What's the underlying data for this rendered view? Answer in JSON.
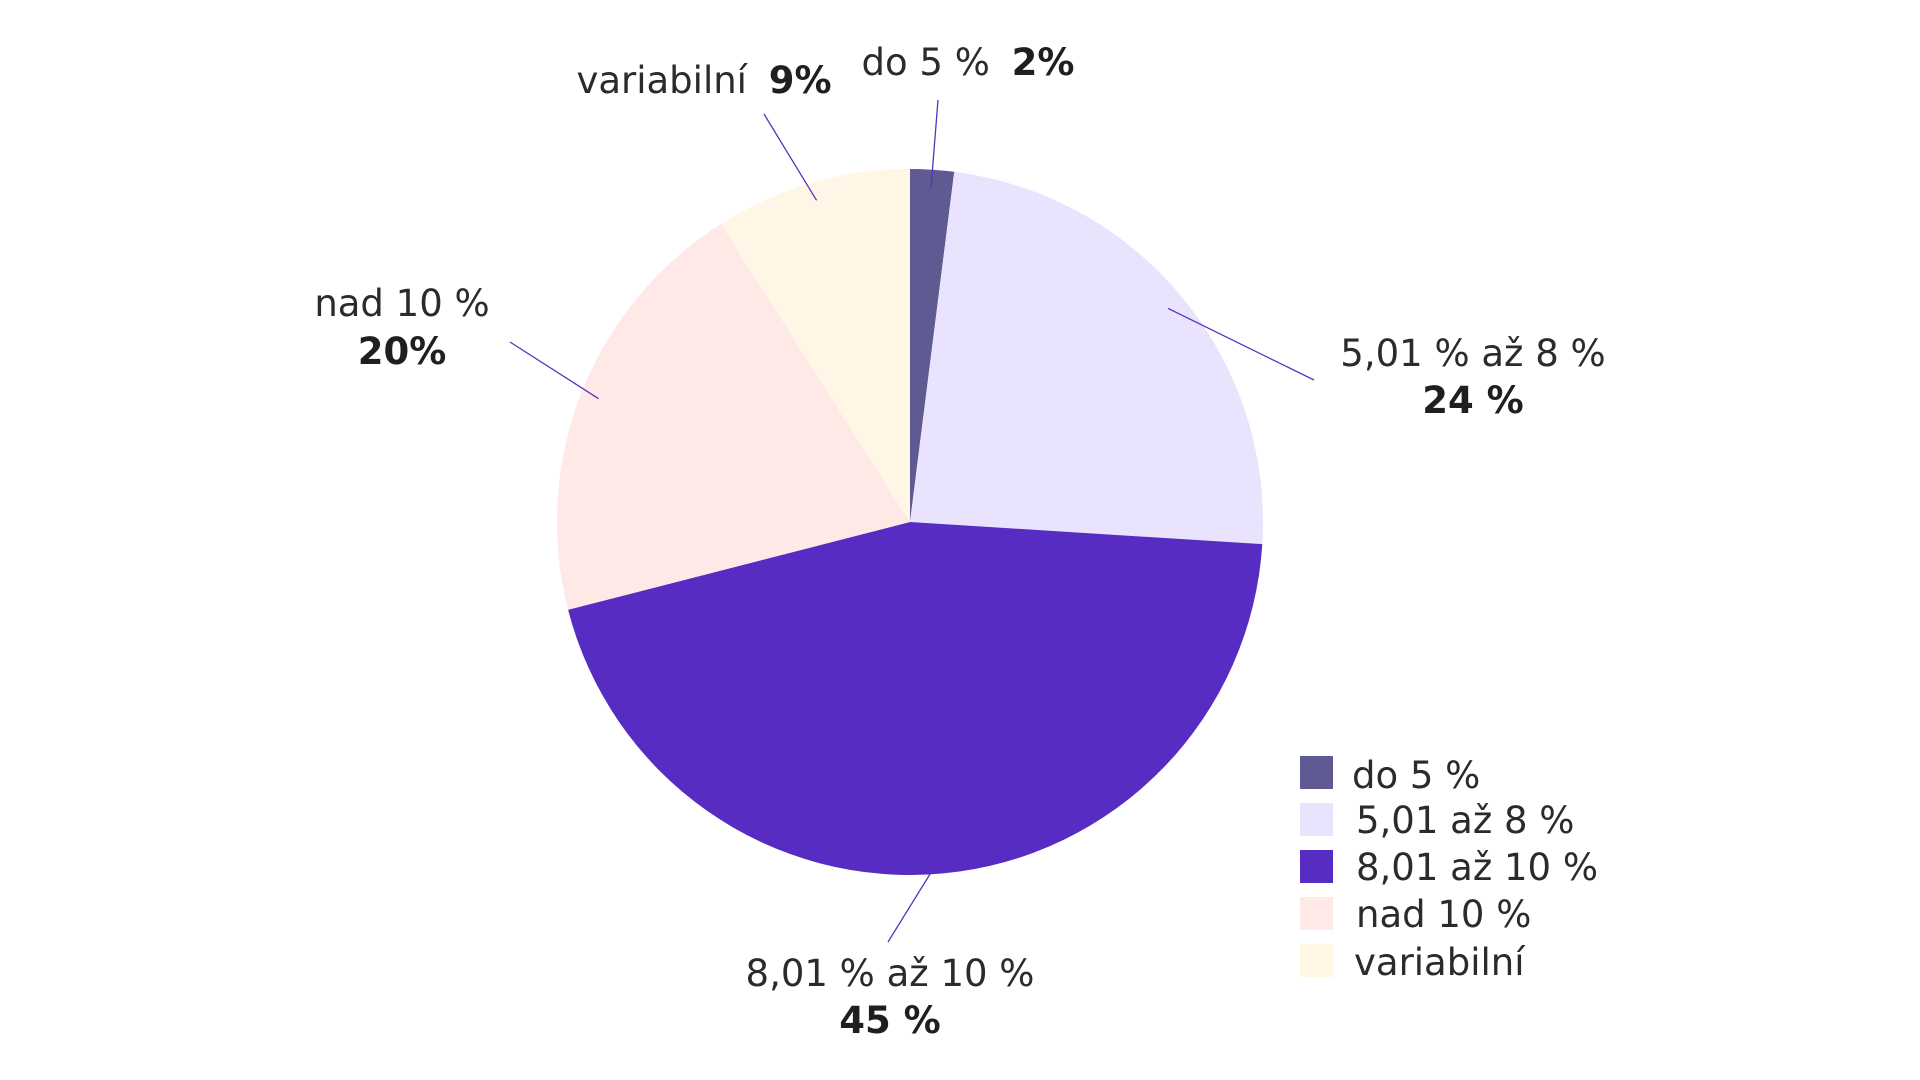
{
  "chart_data": {
    "type": "pie",
    "slices": [
      {
        "name": "do 5 %",
        "value": 2,
        "color": "#605a92",
        "label_name": "do 5 %",
        "label_value": "2%",
        "legend": "do 5 %"
      },
      {
        "name": "5,01 % až 8 %",
        "value": 24,
        "color": "#e9e3fd",
        "label_name": "5,01 % až 8 %",
        "label_value": "24 %",
        "legend": "5,01 až 8 %"
      },
      {
        "name": "8,01 % až 10 %",
        "value": 45,
        "color": "#562cc2",
        "label_name": "8,01 % až 10 %",
        "label_value": "45 %",
        "legend": "8,01 až 10 %"
      },
      {
        "name": "nad 10 %",
        "value": 20,
        "color": "#fee9e6",
        "label_name": "nad 10 %",
        "label_value": "20%",
        "legend": "nad 10 %"
      },
      {
        "name": "variabilní",
        "value": 9,
        "color": "#fff6e6",
        "label_name": "variabilní",
        "label_value": "9%",
        "legend": "variabilní"
      }
    ],
    "legend_position": "bottom-right"
  }
}
